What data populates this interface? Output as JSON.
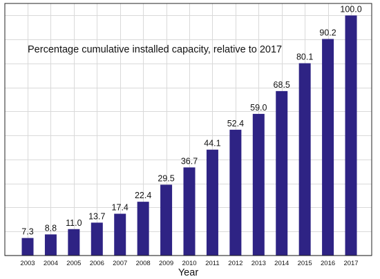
{
  "chart_data": {
    "type": "bar",
    "title": "Percentage cumulative installed capacity, relative to 2017",
    "xlabel": "Year",
    "ylabel": "",
    "categories": [
      "2003",
      "2004",
      "2005",
      "2006",
      "2007",
      "2008",
      "2009",
      "2010",
      "2011",
      "2012",
      "2013",
      "2014",
      "2015",
      "2016",
      "2017"
    ],
    "values": [
      7.3,
      8.8,
      11.0,
      13.7,
      17.4,
      22.4,
      29.5,
      36.7,
      44.1,
      52.4,
      59.0,
      68.5,
      80.1,
      90.2,
      100.0
    ],
    "value_labels": [
      "7.3",
      "8.8",
      "11.0",
      "13.7",
      "17.4",
      "22.4",
      "29.5",
      "36.7",
      "44.1",
      "52.4",
      "59.0",
      "68.5",
      "80.1",
      "90.2",
      "100.0"
    ],
    "ylim": [
      0,
      105
    ],
    "y_tick_values": [
      0,
      10,
      20,
      30,
      40,
      50,
      60,
      70,
      80,
      90,
      100
    ],
    "y_tick_labels_shown": false,
    "grid": true,
    "legend": "none",
    "colors": {
      "bar": "#2e2384",
      "grid": "#d9d9d9",
      "axis": "#222222"
    }
  }
}
